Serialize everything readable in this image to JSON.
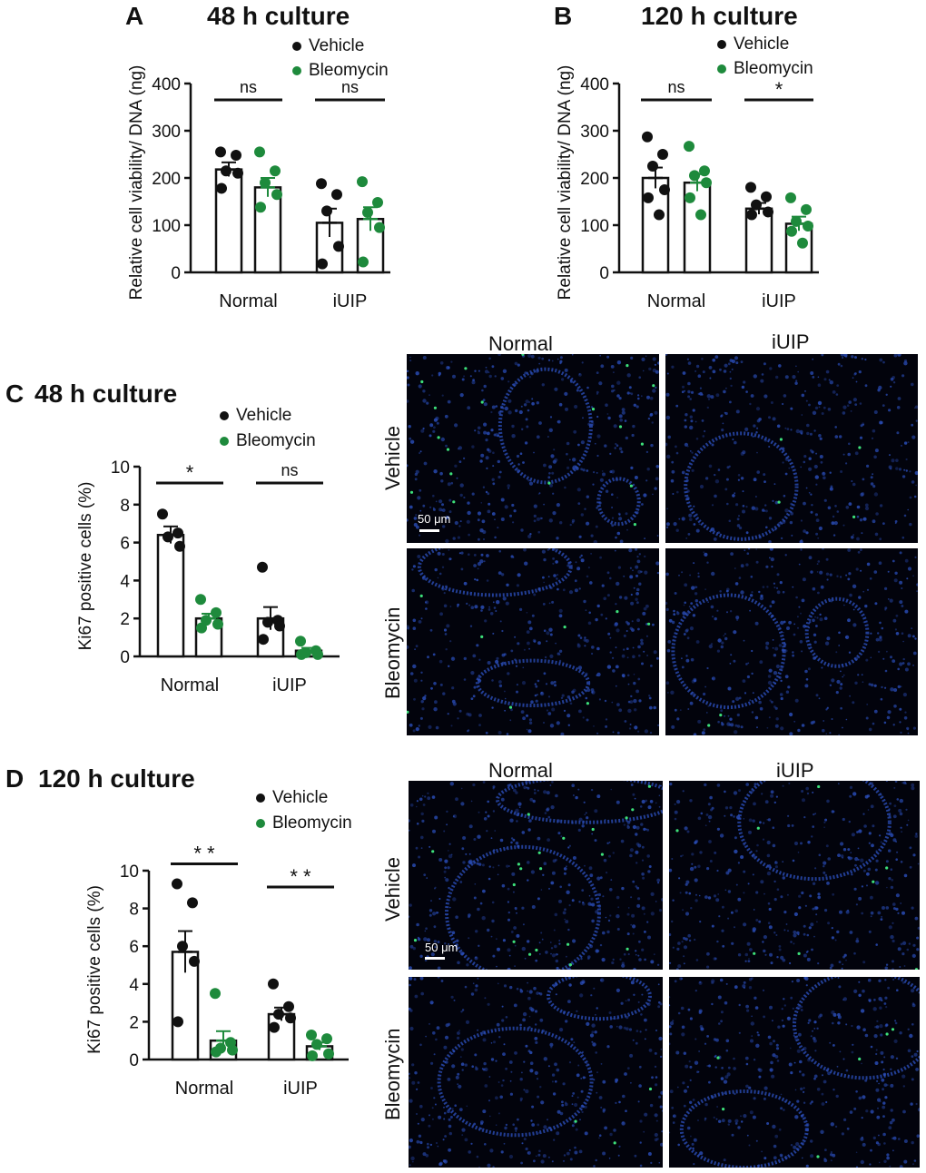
{
  "colors": {
    "vehicle": "#111111",
    "bleomycin": "#1e8a3c",
    "bar_fill": "#ffffff",
    "image_bg": "#02030c",
    "nuclei": "#2a4db8",
    "ki67": "#3de07a"
  },
  "legend": {
    "vehicle": "Vehicle",
    "bleomycin": "Bleomycin"
  },
  "panels": {
    "A": {
      "letter": "A",
      "title": "48 h culture"
    },
    "B": {
      "letter": "B",
      "title": "120 h culture"
    },
    "C": {
      "letter": "C",
      "title": "48 h culture"
    },
    "D": {
      "letter": "D",
      "title": "120 h culture"
    }
  },
  "images": {
    "C": {
      "col1": "Normal",
      "col2": "iUIP",
      "row1": "Vehicle",
      "row2": "Bleomycin",
      "scale": "50 μm"
    },
    "D": {
      "col1": "Normal",
      "col2": "iUIP",
      "row1": "Vehicle",
      "row2": "Bleomycin",
      "scale": "50 μm"
    }
  },
  "chart_data": [
    {
      "panel": "A",
      "type": "bar",
      "ylabel": "Relative cell viability/ DNA (ng)",
      "ylim": [
        0,
        400
      ],
      "yticks": [
        0,
        100,
        200,
        300,
        400
      ],
      "categories": [
        "Normal",
        "iUIP"
      ],
      "series": [
        {
          "name": "Vehicle",
          "means": [
            218,
            105
          ],
          "sem": [
            15,
            30
          ],
          "points": [
            [
              255,
              248,
              215,
              210,
              178
            ],
            [
              188,
              165,
              130,
              55,
              18
            ]
          ]
        },
        {
          "name": "Bleomycin",
          "means": [
            180,
            113
          ],
          "sem": [
            20,
            25
          ],
          "points": [
            [
              255,
              215,
              190,
              165,
              138
            ],
            [
              192,
              148,
              127,
              95,
              22
            ]
          ]
        }
      ],
      "significance": [
        "ns",
        "ns"
      ]
    },
    {
      "panel": "B",
      "type": "bar",
      "ylabel": "Relative cell viability/ DNA (ng)",
      "ylim": [
        0,
        400
      ],
      "yticks": [
        0,
        100,
        200,
        300,
        400
      ],
      "categories": [
        "Normal",
        "iUIP"
      ],
      "series": [
        {
          "name": "Vehicle",
          "means": [
            200,
            135
          ],
          "sem": [
            22,
            12
          ],
          "points": [
            [
              287,
              250,
              225,
              175,
              158,
              122
            ],
            [
              180,
              160,
              143,
              128,
              122
            ]
          ]
        },
        {
          "name": "Bleomycin",
          "means": [
            190,
            103
          ],
          "sem": [
            18,
            15
          ],
          "points": [
            [
              267,
              215,
              205,
              190,
              158,
              122
            ],
            [
              158,
              133,
              108,
              98,
              87,
              62
            ]
          ]
        }
      ],
      "significance": [
        "ns",
        "*"
      ]
    },
    {
      "panel": "C",
      "type": "bar",
      "ylabel": "Ki67 positive cells (%)",
      "ylim": [
        0,
        10
      ],
      "yticks": [
        0,
        2,
        4,
        6,
        8,
        10
      ],
      "categories": [
        "Normal",
        "iUIP"
      ],
      "series": [
        {
          "name": "Vehicle",
          "means": [
            6.4,
            2.0
          ],
          "sem": [
            0.45,
            0.6
          ],
          "points": [
            [
              7.5,
              6.5,
              6.3,
              5.8
            ],
            [
              4.7,
              1.9,
              1.8,
              1.6,
              0.9
            ]
          ]
        },
        {
          "name": "Bleomycin",
          "means": [
            2.0,
            0.3
          ],
          "sem": [
            0.25,
            0.15
          ],
          "points": [
            [
              3.0,
              2.3,
              1.9,
              1.7,
              1.5
            ],
            [
              0.8,
              0.3,
              0.2,
              0.1,
              0.1
            ]
          ]
        }
      ],
      "significance": [
        "*",
        "ns"
      ]
    },
    {
      "panel": "D",
      "type": "bar",
      "ylabel": "Ki67 positive cells (%)",
      "ylim": [
        0,
        10
      ],
      "yticks": [
        0,
        2,
        4,
        6,
        8,
        10
      ],
      "categories": [
        "Normal",
        "iUIP"
      ],
      "series": [
        {
          "name": "Vehicle",
          "means": [
            5.7,
            2.4
          ],
          "sem": [
            1.1,
            0.35
          ],
          "points": [
            [
              9.3,
              8.3,
              6.0,
              5.2,
              2.0
            ],
            [
              4.0,
              2.8,
              2.4,
              2.2,
              1.7
            ]
          ]
        },
        {
          "name": "Bleomycin",
          "means": [
            1.0,
            0.7
          ],
          "sem": [
            0.5,
            0.2
          ],
          "points": [
            [
              3.5,
              0.9,
              0.6,
              0.5,
              0.4
            ],
            [
              1.3,
              1.1,
              0.8,
              0.3,
              0.2
            ]
          ]
        }
      ],
      "significance": [
        "* *",
        "* *"
      ]
    }
  ]
}
